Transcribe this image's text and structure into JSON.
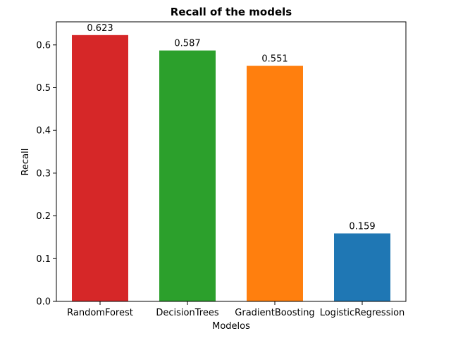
{
  "chart_data": {
    "type": "bar",
    "title": "Recall of the models",
    "xlabel": "Modelos",
    "ylabel": "Recall",
    "categories": [
      "RandomForest",
      "DecisionTrees",
      "GradientBoosting",
      "LogisticRegression"
    ],
    "values": [
      0.623,
      0.587,
      0.551,
      0.159
    ],
    "value_labels": [
      "0.623",
      "0.587",
      "0.551",
      "0.159"
    ],
    "colors": [
      "#d62728",
      "#2ca02c",
      "#ff7f0e",
      "#1f77b4"
    ],
    "ylim": [
      0,
      0.654
    ],
    "yticks": [
      0.0,
      0.1,
      0.2,
      0.3,
      0.4,
      0.5,
      0.6
    ],
    "ytick_labels": [
      "0.0",
      "0.1",
      "0.2",
      "0.3",
      "0.4",
      "0.5",
      "0.6"
    ],
    "grid": false,
    "legend": false
  }
}
